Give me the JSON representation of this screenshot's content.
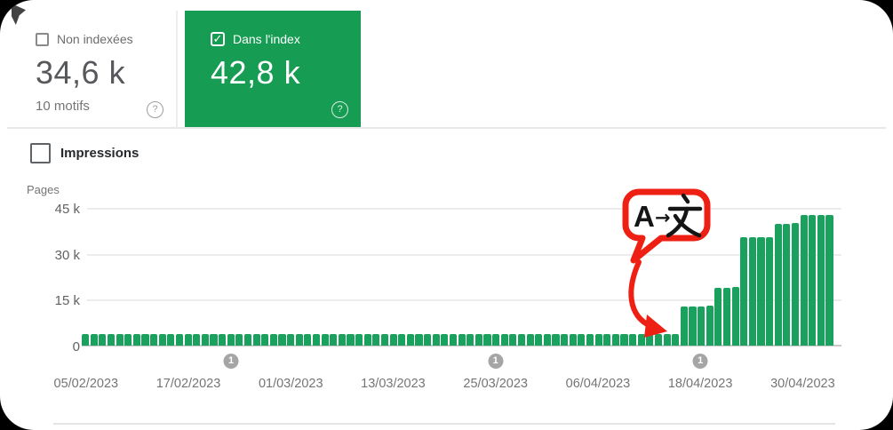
{
  "cards": {
    "non_indexed": {
      "label": "Non indexées",
      "value": "34,6 k",
      "sub": "10 motifs",
      "checked": false
    },
    "indexed": {
      "label": "Dans l'index",
      "value": "42,8 k",
      "checked": true
    }
  },
  "impressions_toggle": {
    "label": "Impressions",
    "checked": false
  },
  "icons": {
    "checkmark": "✓",
    "help": "?",
    "translate_badge": "A→文"
  },
  "colors": {
    "card_green": "#179c53",
    "bar_green": "#1aa15e",
    "annotation_red": "#ee2014",
    "marker_gray": "#a5a5a5"
  },
  "chart_data": {
    "type": "bar",
    "title": "",
    "xlabel": "",
    "ylabel": "Pages",
    "ylim": [
      0,
      45000
    ],
    "y_ticks": [
      "45 k",
      "30 k",
      "15 k",
      "0"
    ],
    "grid": true,
    "x_labels": [
      "05/02/2023",
      "17/02/2023",
      "01/03/2023",
      "13/03/2023",
      "25/03/2023",
      "06/04/2023",
      "18/04/2023",
      "30/04/2023"
    ],
    "x_label_days": [
      0,
      12,
      24,
      36,
      48,
      60,
      72,
      84
    ],
    "values": [
      3800,
      3800,
      3800,
      3800,
      3800,
      3800,
      3800,
      3800,
      3800,
      3800,
      3800,
      3800,
      3800,
      3800,
      3800,
      3800,
      3800,
      3800,
      3800,
      3800,
      3800,
      3800,
      3800,
      3800,
      3800,
      3800,
      3800,
      3800,
      3800,
      3800,
      3800,
      3800,
      3800,
      3800,
      3800,
      3800,
      3800,
      3800,
      3800,
      3800,
      3800,
      3800,
      3800,
      3800,
      3800,
      3800,
      3800,
      3800,
      3800,
      3800,
      3800,
      3800,
      3800,
      3800,
      3800,
      3800,
      3800,
      3800,
      3800,
      3800,
      3800,
      3800,
      3800,
      3800,
      3800,
      3800,
      3800,
      3800,
      3800,
      3800,
      12800,
      12800,
      12900,
      13000,
      18900,
      19000,
      19100,
      35300,
      35400,
      35500,
      35500,
      39800,
      39900,
      40000,
      42600,
      42700,
      42800,
      42800
    ],
    "annotation_markers": [
      {
        "label": "1",
        "day": 17
      },
      {
        "label": "1",
        "day": 48
      },
      {
        "label": "1",
        "day": 72
      }
    ],
    "annotation_badge": {
      "text": "A→文"
    }
  }
}
